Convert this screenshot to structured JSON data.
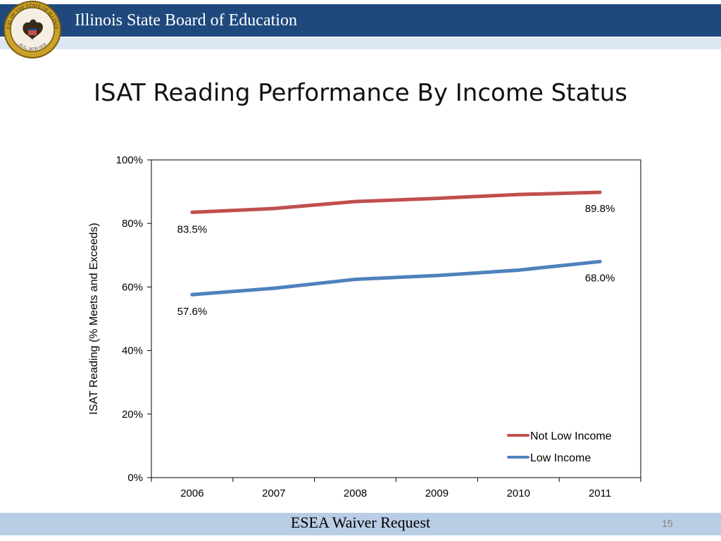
{
  "header": {
    "title": "Illinois State Board of Education"
  },
  "seal": {
    "top_text": "SEAL OF THE STATE OF ILLINOIS",
    "bottom_text": "AUG. 26TH 1818",
    "colors": {
      "ring": "#c9a227",
      "inner": "#f4efe2",
      "eagle": "#3b2a1a"
    }
  },
  "slide": {
    "title": "ISAT Reading Performance By Income Status"
  },
  "chart_data": {
    "type": "line",
    "x": [
      "2006",
      "2007",
      "2008",
      "2009",
      "2010",
      "2011"
    ],
    "ylabel": "ISAT Reading (% Meets and Exceeds)",
    "ylim": [
      0,
      100
    ],
    "yticks": [
      "0%",
      "20%",
      "40%",
      "60%",
      "80%",
      "100%"
    ],
    "grid": false,
    "legend": "bottom-right",
    "series": [
      {
        "name": "Not Low Income",
        "values": [
          83.5,
          84.7,
          86.9,
          87.9,
          89.1,
          89.8
        ],
        "color": "#c0504d",
        "labels": [
          {
            "index": 0,
            "text": "83.5%"
          },
          {
            "index": 5,
            "text": "89.8%"
          }
        ]
      },
      {
        "name": "Low Income",
        "values": [
          57.6,
          59.6,
          62.4,
          63.6,
          65.3,
          68.0
        ],
        "color": "#4f81bd",
        "labels": [
          {
            "index": 0,
            "text": "57.6%"
          },
          {
            "index": 5,
            "text": "68.0%"
          }
        ]
      }
    ]
  },
  "footer": {
    "text": "ESEA Waiver Request",
    "page_number": "15"
  }
}
